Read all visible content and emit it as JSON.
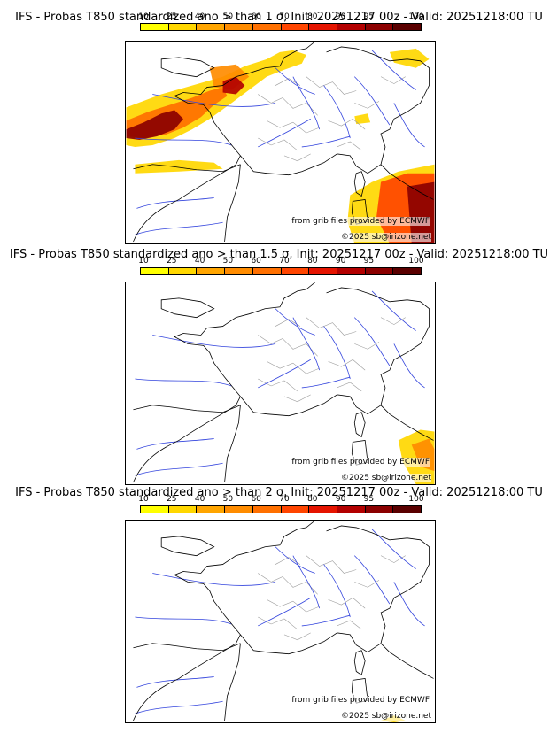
{
  "colorbar": {
    "ticks": [
      "10",
      "25",
      "40",
      "50",
      "60",
      "70",
      "80",
      "90",
      "95",
      "100"
    ],
    "colors": [
      "#ffff00",
      "#ffd700",
      "#ffa500",
      "#ff8c00",
      "#ff7000",
      "#ff4500",
      "#e51400",
      "#b30000",
      "#8b0000",
      "#5a0000"
    ]
  },
  "panels": [
    {
      "title": "IFS - Probas T850  standardized ano > than 1 σ, Init: 20251217 00z - Valid: 20251218:00 TU"
    },
    {
      "title": "IFS - Probas T850  standardized ano > than 1.5 σ, Init: 20251217 00z - Valid: 20251218:00 TU"
    },
    {
      "title": "IFS - Probas T850  standardized ano > than 2 σ, Init: 20251217 00z - Valid: 20251218:00 TU"
    }
  ],
  "credits": {
    "grib": "from grib files provided by ECMWF",
    "copyright": "©2025 sb@irizone.net"
  }
}
